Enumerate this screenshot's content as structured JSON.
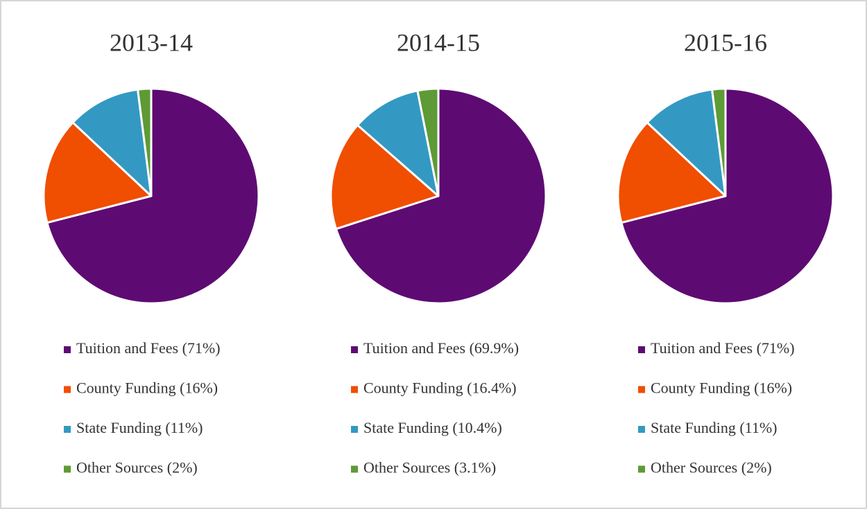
{
  "chart_data": [
    {
      "type": "pie",
      "title": "2013-14",
      "categories": [
        "Tuition and Fees (71%)",
        "County Funding (16%)",
        "State Funding (11%)",
        "Other Sources (2%)"
      ],
      "values": [
        71,
        16,
        11,
        2
      ],
      "colors": [
        "#5e0a73",
        "#f04e00",
        "#3399c3",
        "#5e9a35"
      ]
    },
    {
      "type": "pie",
      "title": "2014-15",
      "categories": [
        "Tuition and Fees (69.9%)",
        "County Funding (16.4%)",
        "State Funding (10.4%)",
        "Other Sources (3.1%)"
      ],
      "values": [
        69.9,
        16.4,
        10.4,
        3.1
      ],
      "colors": [
        "#5e0a73",
        "#f04e00",
        "#3399c3",
        "#5e9a35"
      ]
    },
    {
      "type": "pie",
      "title": "2015-16",
      "categories": [
        "Tuition and Fees (71%)",
        "County Funding (16%)",
        "State Funding (11%)",
        "Other Sources (2%)"
      ],
      "values": [
        71,
        16,
        11,
        2
      ],
      "colors": [
        "#5e0a73",
        "#f04e00",
        "#3399c3",
        "#5e9a35"
      ]
    }
  ]
}
